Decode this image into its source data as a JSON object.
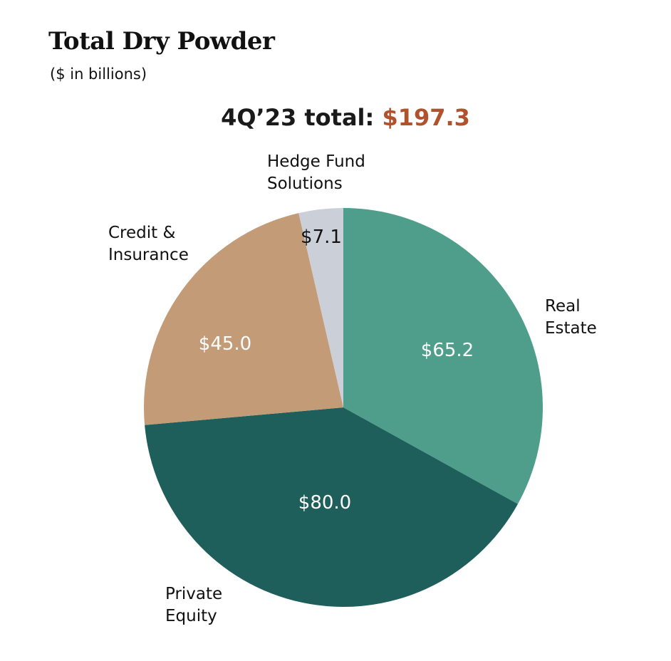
{
  "chart_data": {
    "type": "pie",
    "title": "Total Dry Powder",
    "subtitle": "($ in billions)",
    "total_label": "4Q’23 total:",
    "total_value": "$197.3",
    "start_angle_deg": 0,
    "direction": "clockwise",
    "slices": [
      {
        "name": "Real Estate",
        "label_lines": [
          "Real",
          "Estate"
        ],
        "value": 65.2,
        "value_label": "$65.2",
        "color": "#4e9e8b",
        "value_text_color": "#ffffff"
      },
      {
        "name": "Private Equity",
        "label_lines": [
          "Private",
          "Equity"
        ],
        "value": 80.0,
        "value_label": "$80.0",
        "color": "#1e5e5b",
        "value_text_color": "#ffffff"
      },
      {
        "name": "Credit & Insurance",
        "label_lines": [
          "Credit &",
          "Insurance"
        ],
        "value": 45.0,
        "value_label": "$45.0",
        "color": "#c39b77",
        "value_text_color": "#ffffff"
      },
      {
        "name": "Hedge Fund Solutions",
        "label_lines": [
          "Hedge Fund",
          "Solutions"
        ],
        "value": 7.1,
        "value_label": "$7.1",
        "color": "#cbcfd7",
        "value_text_color": "#111111"
      }
    ],
    "units": "$ in billions"
  }
}
